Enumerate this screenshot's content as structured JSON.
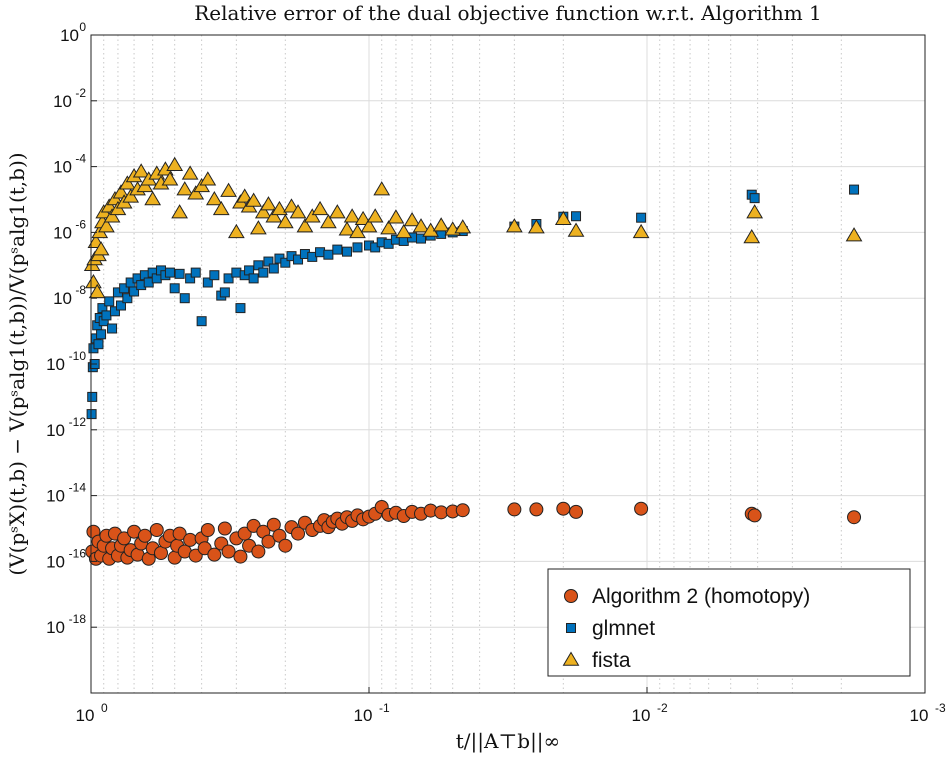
{
  "chart_data": {
    "type": "scatter",
    "title": "Relative error of the dual objective function w.r.t. Algorithm 1",
    "xlabel": "t/||A⊤b||∞",
    "ylabel": "(V(pˢX)(t,b) − V(pˢalg1(t,b))/V(pˢalg1(t,b))",
    "xscale": "log",
    "yscale": "log",
    "x_reversed": true,
    "xlim": [
      1,
      0.001
    ],
    "ylim": [
      1e-20,
      1
    ],
    "grid": true,
    "legend_position": "bottom-right",
    "x_ticks": [
      {
        "base": "10",
        "exp": "0"
      },
      {
        "base": "10",
        "exp": "-1"
      },
      {
        "base": "10",
        "exp": "-2"
      },
      {
        "base": "10",
        "exp": "-3"
      }
    ],
    "y_ticks": [
      {
        "base": "10",
        "exp": "0"
      },
      {
        "base": "10",
        "exp": "-2"
      },
      {
        "base": "10",
        "exp": "-4"
      },
      {
        "base": "10",
        "exp": "-6"
      },
      {
        "base": "10",
        "exp": "-8"
      },
      {
        "base": "10",
        "exp": "-10"
      },
      {
        "base": "10",
        "exp": "-12"
      },
      {
        "base": "10",
        "exp": "-14"
      },
      {
        "base": "10",
        "exp": "-16"
      },
      {
        "base": "10",
        "exp": "-18"
      }
    ],
    "series": [
      {
        "name": "Algorithm 2 (homotopy)",
        "marker": "circle",
        "color": "#D95319",
        "points": [
          [
            0.99,
            2e-16
          ],
          [
            0.98,
            8e-16
          ],
          [
            0.96,
            1.2e-16
          ],
          [
            0.94,
            4e-16
          ],
          [
            0.92,
            1.5e-16
          ],
          [
            0.9,
            3e-16
          ],
          [
            0.88,
            6e-16
          ],
          [
            0.86,
            1.2e-16
          ],
          [
            0.84,
            2.5e-16
          ],
          [
            0.82,
            7e-16
          ],
          [
            0.8,
            1.5e-16
          ],
          [
            0.78,
            3e-16
          ],
          [
            0.76,
            5e-16
          ],
          [
            0.74,
            1.3e-16
          ],
          [
            0.72,
            2.2e-16
          ],
          [
            0.7,
            8e-16
          ],
          [
            0.68,
            1.6e-16
          ],
          [
            0.66,
            3.5e-16
          ],
          [
            0.64,
            6e-16
          ],
          [
            0.62,
            1.2e-16
          ],
          [
            0.6,
            2.5e-16
          ],
          [
            0.58,
            9e-16
          ],
          [
            0.56,
            1.8e-16
          ],
          [
            0.54,
            4e-16
          ],
          [
            0.52,
            6e-16
          ],
          [
            0.5,
            1.3e-16
          ],
          [
            0.49,
            3e-16
          ],
          [
            0.48,
            7e-16
          ],
          [
            0.46,
            2e-16
          ],
          [
            0.44,
            4.5e-16
          ],
          [
            0.42,
            1.5e-16
          ],
          [
            0.4,
            5e-16
          ],
          [
            0.39,
            2.5e-16
          ],
          [
            0.38,
            9e-16
          ],
          [
            0.36,
            1.6e-16
          ],
          [
            0.34,
            3.5e-16
          ],
          [
            0.33,
            1e-15
          ],
          [
            0.32,
            2e-16
          ],
          [
            0.3,
            5e-16
          ],
          [
            0.29,
            1.4e-16
          ],
          [
            0.28,
            7e-16
          ],
          [
            0.27,
            3e-16
          ],
          [
            0.26,
            1.2e-15
          ],
          [
            0.25,
            2e-16
          ],
          [
            0.24,
            8e-16
          ],
          [
            0.23,
            4e-16
          ],
          [
            0.22,
            1.3e-15
          ],
          [
            0.21,
            6e-16
          ],
          [
            0.2,
            3e-16
          ],
          [
            0.19,
            1.1e-15
          ],
          [
            0.18,
            7e-16
          ],
          [
            0.17,
            1.5e-15
          ],
          [
            0.16,
            9e-16
          ],
          [
            0.15,
            1.2e-15
          ],
          [
            0.145,
            1.8e-15
          ],
          [
            0.14,
            1.1e-15
          ],
          [
            0.135,
            1.6e-15
          ],
          [
            0.13,
            2e-15
          ],
          [
            0.125,
            1.4e-15
          ],
          [
            0.12,
            2.2e-15
          ],
          [
            0.115,
            1.7e-15
          ],
          [
            0.11,
            2.5e-15
          ],
          [
            0.105,
            1.9e-15
          ],
          [
            0.1,
            2.3e-15
          ],
          [
            0.095,
            2.8e-15
          ],
          [
            0.09,
            4.5e-15
          ],
          [
            0.085,
            2.6e-15
          ],
          [
            0.08,
            3e-15
          ],
          [
            0.075,
            2.4e-15
          ],
          [
            0.07,
            3.2e-15
          ],
          [
            0.065,
            2.8e-15
          ],
          [
            0.06,
            3.5e-15
          ],
          [
            0.055,
            3.1e-15
          ],
          [
            0.05,
            3.3e-15
          ],
          [
            0.046,
            3.6e-15
          ],
          [
            0.03,
            3.8e-15
          ],
          [
            0.025,
            3.8e-15
          ],
          [
            0.02,
            4e-15
          ],
          [
            0.018,
            3.2e-15
          ],
          [
            0.0105,
            4e-15
          ],
          [
            0.0042,
            2.8e-15
          ],
          [
            0.0041,
            2.5e-15
          ],
          [
            0.0018,
            2.2e-15
          ]
        ]
      },
      {
        "name": "glmnet",
        "marker": "square",
        "color": "#0072BD",
        "points": [
          [
            0.995,
            3e-12
          ],
          [
            0.99,
            1e-11
          ],
          [
            0.985,
            8e-11
          ],
          [
            0.98,
            3e-10
          ],
          [
            0.97,
            1e-10
          ],
          [
            0.96,
            6e-10
          ],
          [
            0.95,
            1.5e-09
          ],
          [
            0.94,
            4e-10
          ],
          [
            0.93,
            2.5e-09
          ],
          [
            0.92,
            8e-10
          ],
          [
            0.91,
            5e-09
          ],
          [
            0.9,
            2e-09
          ],
          [
            0.88,
            3e-09
          ],
          [
            0.86,
            8e-09
          ],
          [
            0.84,
            1.2e-09
          ],
          [
            0.82,
            4e-09
          ],
          [
            0.8,
            1.5e-08
          ],
          [
            0.78,
            6e-09
          ],
          [
            0.76,
            2e-08
          ],
          [
            0.74,
            1e-08
          ],
          [
            0.72,
            3e-08
          ],
          [
            0.7,
            1.6e-08
          ],
          [
            0.68,
            4e-08
          ],
          [
            0.66,
            2.5e-08
          ],
          [
            0.64,
            5e-08
          ],
          [
            0.62,
            3e-08
          ],
          [
            0.6,
            6e-08
          ],
          [
            0.58,
            4e-08
          ],
          [
            0.56,
            7e-08
          ],
          [
            0.54,
            5e-08
          ],
          [
            0.52,
            6e-08
          ],
          [
            0.5,
            2e-08
          ],
          [
            0.48,
            5.5e-08
          ],
          [
            0.46,
            1e-08
          ],
          [
            0.44,
            4e-08
          ],
          [
            0.42,
            6e-08
          ],
          [
            0.4,
            2e-09
          ],
          [
            0.38,
            3e-08
          ],
          [
            0.36,
            5e-08
          ],
          [
            0.34,
            1.2e-08
          ],
          [
            0.33,
            1.5e-08
          ],
          [
            0.32,
            4e-08
          ],
          [
            0.3,
            6e-08
          ],
          [
            0.29,
            5e-09
          ],
          [
            0.28,
            5e-08
          ],
          [
            0.27,
            7e-08
          ],
          [
            0.26,
            4e-08
          ],
          [
            0.25,
            1e-07
          ],
          [
            0.24,
            6e-08
          ],
          [
            0.23,
            1.3e-07
          ],
          [
            0.22,
            8e-08
          ],
          [
            0.21,
            1.6e-07
          ],
          [
            0.2,
            1.2e-07
          ],
          [
            0.19,
            1.9e-07
          ],
          [
            0.18,
            1.5e-07
          ],
          [
            0.17,
            2.2e-07
          ],
          [
            0.16,
            1.8e-07
          ],
          [
            0.15,
            2.5e-07
          ],
          [
            0.14,
            2.1e-07
          ],
          [
            0.13,
            3e-07
          ],
          [
            0.12,
            2.6e-07
          ],
          [
            0.11,
            3.5e-07
          ],
          [
            0.1,
            4e-07
          ],
          [
            0.095,
            3.5e-07
          ],
          [
            0.09,
            5e-07
          ],
          [
            0.085,
            4.5e-07
          ],
          [
            0.08,
            6e-07
          ],
          [
            0.075,
            5.5e-07
          ],
          [
            0.07,
            7e-07
          ],
          [
            0.065,
            6.5e-07
          ],
          [
            0.06,
            8e-07
          ],
          [
            0.055,
            9e-07
          ],
          [
            0.05,
            1e-06
          ],
          [
            0.046,
            1.1e-06
          ],
          [
            0.03,
            1.5e-06
          ],
          [
            0.025,
            1.8e-06
          ],
          [
            0.02,
            3e-06
          ],
          [
            0.018,
            3.1e-06
          ],
          [
            0.0105,
            2.8e-06
          ],
          [
            0.0042,
            1.4e-05
          ],
          [
            0.0041,
            1.1e-05
          ],
          [
            0.0018,
            2e-05
          ]
        ]
      },
      {
        "name": "fista",
        "marker": "triangle",
        "color": "#EDB120",
        "points": [
          [
            0.99,
            1e-07
          ],
          [
            0.98,
            3e-08
          ],
          [
            0.97,
            1.5e-07
          ],
          [
            0.96,
            5e-07
          ],
          [
            0.95,
            1.5e-08
          ],
          [
            0.94,
            2e-07
          ],
          [
            0.93,
            1e-06
          ],
          [
            0.92,
            3e-07
          ],
          [
            0.91,
            2e-06
          ],
          [
            0.9,
            4e-06
          ],
          [
            0.88,
            1.5e-06
          ],
          [
            0.86,
            6e-06
          ],
          [
            0.84,
            3e-06
          ],
          [
            0.82,
            1e-05
          ],
          [
            0.8,
            5e-06
          ],
          [
            0.78,
            1.6e-05
          ],
          [
            0.76,
            8e-06
          ],
          [
            0.74,
            3e-05
          ],
          [
            0.72,
            1.2e-05
          ],
          [
            0.7,
            5e-05
          ],
          [
            0.68,
            2e-05
          ],
          [
            0.66,
            7e-05
          ],
          [
            0.64,
            2.5e-05
          ],
          [
            0.62,
            4e-05
          ],
          [
            0.6,
            1e-05
          ],
          [
            0.58,
            6e-05
          ],
          [
            0.56,
            3e-05
          ],
          [
            0.54,
            8e-05
          ],
          [
            0.52,
            4e-05
          ],
          [
            0.5,
            0.00011
          ],
          [
            0.48,
            4e-06
          ],
          [
            0.46,
            2e-05
          ],
          [
            0.44,
            6e-05
          ],
          [
            0.42,
            1.5e-05
          ],
          [
            0.4,
            2.5e-05
          ],
          [
            0.38,
            4e-05
          ],
          [
            0.36,
            1e-05
          ],
          [
            0.34,
            5e-06
          ],
          [
            0.32,
            1.8e-05
          ],
          [
            0.3,
            1e-06
          ],
          [
            0.29,
            8e-06
          ],
          [
            0.28,
            1.2e-05
          ],
          [
            0.27,
            6e-06
          ],
          [
            0.26,
            9e-06
          ],
          [
            0.25,
            1.3e-06
          ],
          [
            0.24,
            4e-06
          ],
          [
            0.23,
            7e-06
          ],
          [
            0.22,
            3e-06
          ],
          [
            0.21,
            5e-06
          ],
          [
            0.2,
            2e-06
          ],
          [
            0.19,
            6e-06
          ],
          [
            0.18,
            4e-06
          ],
          [
            0.17,
            1.5e-06
          ],
          [
            0.16,
            3e-06
          ],
          [
            0.15,
            5e-06
          ],
          [
            0.14,
            2e-06
          ],
          [
            0.13,
            4e-06
          ],
          [
            0.12,
            1.2e-06
          ],
          [
            0.115,
            3e-06
          ],
          [
            0.11,
            1e-06
          ],
          [
            0.105,
            2.5e-06
          ],
          [
            0.1,
            1.5e-06
          ],
          [
            0.095,
            3e-06
          ],
          [
            0.09,
            2e-05
          ],
          [
            0.085,
            1.3e-06
          ],
          [
            0.08,
            2.8e-06
          ],
          [
            0.075,
            1e-06
          ],
          [
            0.07,
            2.3e-06
          ],
          [
            0.065,
            1.5e-06
          ],
          [
            0.06,
            1.1e-06
          ],
          [
            0.055,
            1.6e-06
          ],
          [
            0.05,
            1.2e-06
          ],
          [
            0.046,
            1.4e-06
          ],
          [
            0.03,
            1.5e-06
          ],
          [
            0.025,
            1.4e-06
          ],
          [
            0.02,
            2.5e-06
          ],
          [
            0.018,
            1.1e-06
          ],
          [
            0.0105,
            1e-06
          ],
          [
            0.0042,
            7e-07
          ],
          [
            0.0041,
            4e-06
          ],
          [
            0.0018,
            8e-07
          ]
        ]
      }
    ]
  }
}
